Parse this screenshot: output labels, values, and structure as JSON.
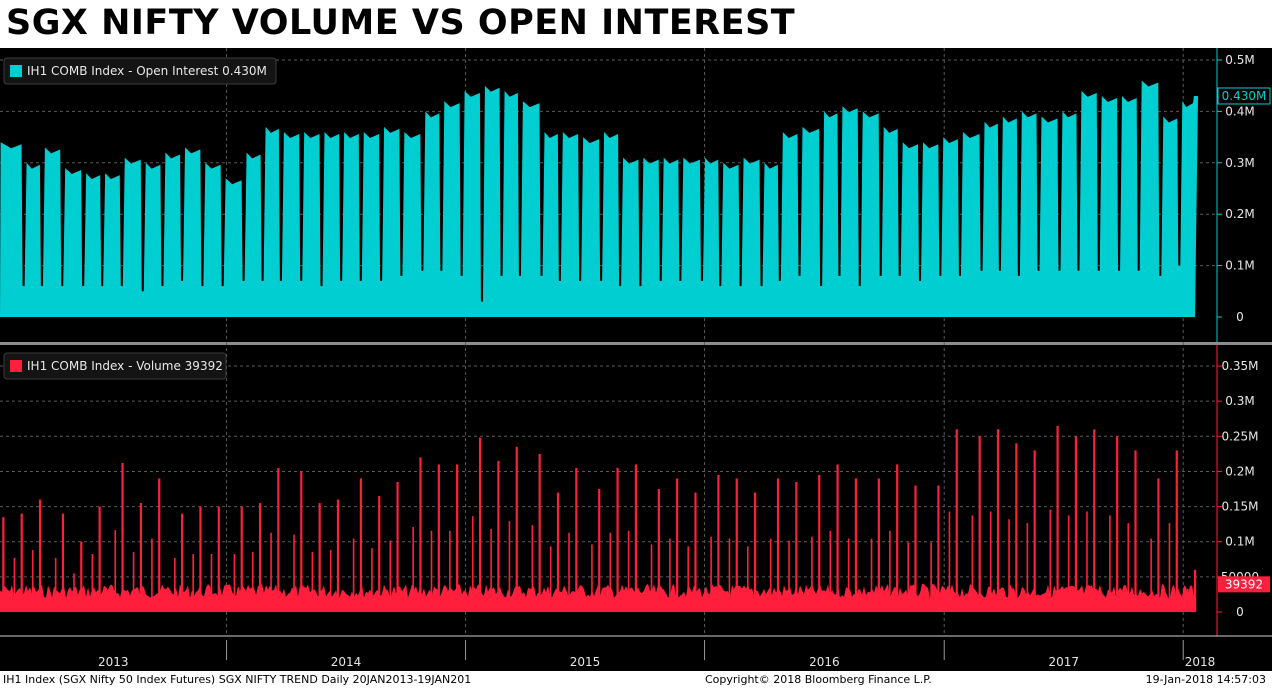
{
  "title": "SGX NIFTY VOLUME VS OPEN INTEREST",
  "colors": {
    "background": "#000000",
    "open_interest": "#00CED1",
    "volume": "#FF1F3D",
    "grid": "#5a5a5a",
    "axis_text": "#e6e6e6"
  },
  "footer": {
    "left": "IH1 Index (SGX Nifty 50 Index Futures) SGX NIFTY TREND  Daily 20JAN2013-19JAN201",
    "middle": "Copyright© 2018 Bloomberg Finance L.P.",
    "right": "19-Jan-2018 14:57:03"
  },
  "chart_data": [
    {
      "type": "area",
      "legend": "IH1 COMB Index - Open Interest 0.430M",
      "last_value_label": "0.430M",
      "last_value": 0.43,
      "ylim": [
        0,
        0.5
      ],
      "yticks": [
        0,
        0.1,
        0.2,
        0.3,
        0.4,
        0.5
      ],
      "ytick_labels": [
        "0",
        "0.1M",
        "0.2M",
        "0.3M",
        "0.4M",
        "0.5M"
      ],
      "x_range": [
        "2013-01-20",
        "2018-01-19"
      ],
      "grid": true,
      "legend_position": "top-left",
      "series": [
        {
          "x": [
            "2013-01-21",
            "2013-02-25",
            "2013-03-25",
            "2013-04-25",
            "2013-05-27",
            "2013-06-25",
            "2013-07-25",
            "2013-08-26",
            "2013-09-25",
            "2013-10-25",
            "2013-11-25",
            "2013-12-26",
            "2014-01-27",
            "2014-02-25",
            "2014-03-25",
            "2014-04-25",
            "2014-05-26",
            "2014-06-25",
            "2014-07-25",
            "2014-08-25",
            "2014-09-25",
            "2014-10-27",
            "2014-11-25",
            "2014-12-26",
            "2015-01-26",
            "2015-02-25",
            "2015-03-25",
            "2015-04-27",
            "2015-05-25",
            "2015-06-25",
            "2015-07-27",
            "2015-08-25",
            "2015-09-25",
            "2015-10-26",
            "2015-11-25",
            "2015-12-28",
            "2016-01-25",
            "2016-02-25",
            "2016-03-28",
            "2016-04-25",
            "2016-05-25",
            "2016-06-27",
            "2016-07-25",
            "2016-08-25",
            "2016-09-26",
            "2016-10-25",
            "2016-11-25",
            "2016-12-26",
            "2017-01-25",
            "2017-02-27",
            "2017-03-27",
            "2017-04-25",
            "2017-05-25",
            "2017-06-26",
            "2017-07-25",
            "2017-08-25",
            "2017-09-25",
            "2017-10-25",
            "2017-11-27",
            "2017-12-26",
            "2018-01-19"
          ],
          "peak": [
            0.34,
            0.3,
            0.33,
            0.29,
            0.28,
            0.28,
            0.31,
            0.3,
            0.32,
            0.33,
            0.3,
            0.27,
            0.32,
            0.37,
            0.36,
            0.36,
            0.36,
            0.36,
            0.36,
            0.37,
            0.36,
            0.4,
            0.42,
            0.44,
            0.45,
            0.44,
            0.42,
            0.36,
            0.36,
            0.35,
            0.36,
            0.31,
            0.31,
            0.31,
            0.31,
            0.31,
            0.3,
            0.31,
            0.3,
            0.36,
            0.37,
            0.4,
            0.41,
            0.4,
            0.37,
            0.34,
            0.34,
            0.35,
            0.36,
            0.38,
            0.39,
            0.4,
            0.39,
            0.4,
            0.44,
            0.43,
            0.43,
            0.46,
            0.39,
            0.42,
            0.43
          ],
          "trough": [
            0.08,
            0.06,
            0.06,
            0.06,
            0.06,
            0.06,
            0.06,
            0.05,
            0.06,
            0.07,
            0.06,
            0.06,
            0.07,
            0.07,
            0.07,
            0.07,
            0.06,
            0.07,
            0.07,
            0.07,
            0.08,
            0.09,
            0.09,
            0.08,
            0.03,
            0.08,
            0.08,
            0.08,
            0.07,
            0.07,
            0.07,
            0.06,
            0.06,
            0.07,
            0.07,
            0.07,
            0.06,
            0.06,
            0.06,
            0.07,
            0.08,
            0.06,
            0.08,
            0.06,
            0.08,
            0.08,
            0.07,
            0.08,
            0.08,
            0.09,
            0.09,
            0.08,
            0.09,
            0.09,
            0.09,
            0.09,
            0.09,
            0.09,
            0.08,
            0.1,
            0.43
          ]
        }
      ]
    },
    {
      "type": "bar",
      "legend": "IH1 COMB Index - Volume 39392",
      "last_value_label": "39392",
      "last_value": 39392,
      "ylim": [
        0,
        360000
      ],
      "yticks": [
        0,
        50000,
        100000,
        150000,
        200000,
        250000,
        300000,
        350000
      ],
      "ytick_labels": [
        "0",
        "50000",
        "0.1M",
        "0.15M",
        "0.2M",
        "0.25M",
        "0.3M",
        "0.35M"
      ],
      "x_range": [
        "2013-01-20",
        "2018-01-19"
      ],
      "xtick_labels": [
        "2013",
        "2014",
        "2015",
        "2016",
        "2017",
        "2018"
      ],
      "grid": true,
      "legend_position": "top-left",
      "series": [
        {
          "baseline": 30000,
          "roll_x": [
            "2013-01-25",
            "2013-02-22",
            "2013-03-22",
            "2013-04-26",
            "2013-05-24",
            "2013-06-21",
            "2013-07-26",
            "2013-08-23",
            "2013-09-20",
            "2013-10-25",
            "2013-11-22",
            "2013-12-20",
            "2014-01-24",
            "2014-02-21",
            "2014-03-21",
            "2014-04-25",
            "2014-05-23",
            "2014-06-20",
            "2014-07-25",
            "2014-08-22",
            "2014-09-19",
            "2014-10-24",
            "2014-11-21",
            "2014-12-19",
            "2015-01-23",
            "2015-02-20",
            "2015-03-20",
            "2015-04-24",
            "2015-05-22",
            "2015-06-19",
            "2015-07-24",
            "2015-08-21",
            "2015-09-18",
            "2015-10-23",
            "2015-11-20",
            "2015-12-18",
            "2016-01-22",
            "2016-02-19",
            "2016-03-18",
            "2016-04-22",
            "2016-05-20",
            "2016-06-24",
            "2016-07-22",
            "2016-08-19",
            "2016-09-23",
            "2016-10-21",
            "2016-11-18",
            "2016-12-23",
            "2017-01-20",
            "2017-02-24",
            "2017-03-24",
            "2017-04-21",
            "2017-05-19",
            "2017-06-23",
            "2017-07-21",
            "2017-08-18",
            "2017-09-22",
            "2017-10-20",
            "2017-11-24",
            "2017-12-22",
            "2018-01-19"
          ],
          "roll_values": [
            135000,
            140000,
            160000,
            140000,
            100000,
            150000,
            212000,
            155000,
            190000,
            140000,
            150000,
            150000,
            150000,
            155000,
            205000,
            200000,
            155000,
            160000,
            190000,
            165000,
            185000,
            220000,
            210000,
            210000,
            248000,
            215000,
            235000,
            225000,
            170000,
            205000,
            175000,
            205000,
            210000,
            175000,
            190000,
            170000,
            195000,
            190000,
            170000,
            190000,
            185000,
            195000,
            210000,
            190000,
            190000,
            210000,
            180000,
            180000,
            260000,
            250000,
            260000,
            240000,
            230000,
            265000,
            250000,
            260000,
            250000,
            230000,
            190000,
            230000,
            60000
          ]
        }
      ]
    }
  ]
}
